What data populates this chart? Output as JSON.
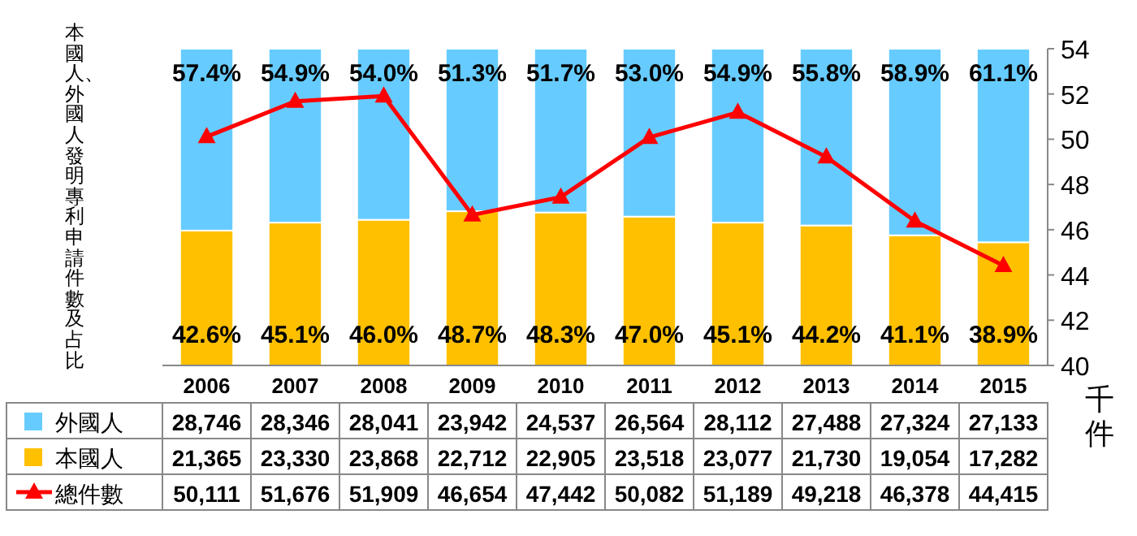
{
  "chart_data": {
    "type": "bar",
    "stacked": true,
    "ylabel": "本國人、外國人發明專利申請件數及占比",
    "y2label": "千件",
    "categories": [
      "2006",
      "2007",
      "2008",
      "2009",
      "2010",
      "2011",
      "2012",
      "2013",
      "2014",
      "2015"
    ],
    "ylim": [
      0,
      100
    ],
    "y2lim": [
      40,
      54
    ],
    "y2ticks": [
      40,
      42,
      44,
      46,
      48,
      50,
      52,
      54
    ],
    "legend": "bottom left",
    "series": [
      {
        "name": "本國人",
        "color": "#ffc000",
        "values": [
          42.6,
          45.1,
          46.0,
          48.7,
          48.3,
          47.0,
          45.1,
          44.2,
          41.1,
          38.9
        ],
        "value_labels": [
          "42.6%",
          "45.1%",
          "46.0%",
          "48.7%",
          "48.3%",
          "47.0%",
          "45.1%",
          "44.2%",
          "41.1%",
          "38.9%"
        ]
      },
      {
        "name": "外國人",
        "color": "#66ccff",
        "values": [
          57.4,
          54.9,
          54.0,
          51.3,
          51.7,
          53.0,
          54.9,
          55.8,
          58.9,
          61.1
        ],
        "value_labels": [
          "57.4%",
          "54.9%",
          "54.0%",
          "51.3%",
          "51.7%",
          "53.0%",
          "54.9%",
          "55.8%",
          "58.9%",
          "61.1%"
        ]
      },
      {
        "name": "總件數",
        "type": "line",
        "axis": "y2",
        "color": "#ff0000",
        "marker": "triangle",
        "values": [
          50.111,
          51.676,
          51.909,
          46.654,
          47.442,
          50.082,
          51.189,
          49.218,
          46.378,
          44.415
        ]
      }
    ],
    "annotations": [
      "21,365",
      "23,330",
      "23,868",
      "22,712",
      "22,905",
      "23,518",
      "23,077",
      "21,730",
      "19,054",
      "17,282",
      "28,746",
      "28,346",
      "28,041",
      "23,942",
      "24,537",
      "26,564",
      "28,112",
      "27,488",
      "27,324",
      "27,133",
      "50,111",
      "51,676",
      "51,909",
      "46,654",
      "47,442",
      "50,082",
      "51,189",
      "49,218",
      "46,378",
      "44,415"
    ]
  }
}
